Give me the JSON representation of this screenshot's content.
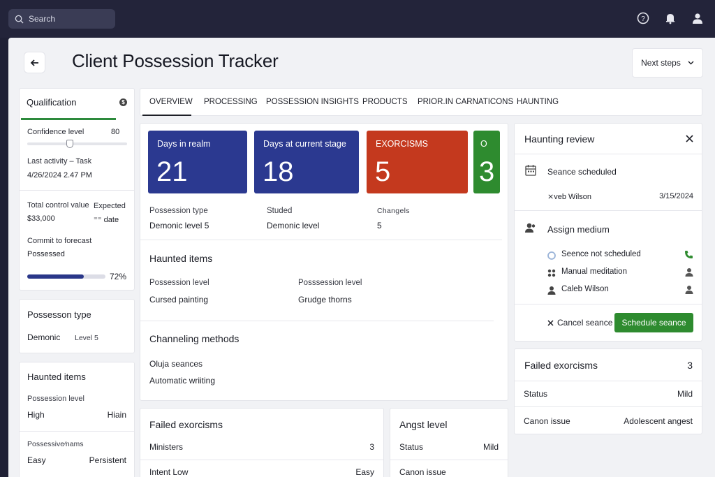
{
  "topbar": {
    "search_placeholder": "Search",
    "icons": [
      "help-icon",
      "bell-icon",
      "user-icon"
    ]
  },
  "header": {
    "title": "Client Possession Tracker",
    "next_steps_label": "Next steps"
  },
  "qualification": {
    "title": "Qualification",
    "confidence_label": "Confidence level",
    "confidence_value": "80",
    "last_activity_label": "Last activity – Task",
    "last_activity_value": "4/26/2024  2.47 PM",
    "total_control_label": "Total control value",
    "total_control_value": "$33,000",
    "expected_label": "Expected",
    "expected_value": "⁼⁼ date",
    "commit_label": "Commit to forecast",
    "commit_value": "Possessed",
    "progress_label": "72%",
    "progress": 0.72
  },
  "possession_type_card": {
    "title": "Possesson type",
    "type": "Demonic",
    "level": "Level 5"
  },
  "haunted_items_card": {
    "title": "Haunted items",
    "level_label": "Possession level",
    "level_left": "High",
    "level_right": "Hiain",
    "possessive_label": "Possessive⁄nams",
    "possessive_left": "Easy",
    "possessive_right": "Persistent"
  },
  "tabs": [
    "OVERVIEW",
    "PROCESSING",
    "POSSESSION INSIGHTS",
    "PRODUCTS",
    "PRIOR.IN CARNATICONS",
    "HAUNTING"
  ],
  "tiles": [
    {
      "label": "Days in realm",
      "value": "21",
      "color": "#2b3990"
    },
    {
      "label": "Days at current stage",
      "value": "18",
      "color": "#2b3990"
    },
    {
      "label": "EXORCISMS",
      "value": "5",
      "color": "#c4391e"
    },
    {
      "label": "O",
      "value": "3",
      "color": "#2e8b2f"
    }
  ],
  "overview": {
    "fields": [
      {
        "label": "Possession type",
        "value": "Demonic level 5"
      },
      {
        "label": "Studed",
        "value": "Demonic level"
      },
      {
        "label": "Changels",
        "value": "5"
      }
    ],
    "haunted_items_title": "Haunted items",
    "haunted_fields": [
      {
        "label": "Possession level",
        "value": "Cursed painting"
      },
      {
        "label": "Posssession level",
        "value": "Grudge thorns"
      }
    ],
    "channeling_title": "Channeling methods",
    "channeling_items": [
      "Oluja seances",
      "Automatic wriiting"
    ]
  },
  "failed_exorcisms_main": {
    "title": "Failed exorcisms",
    "rows": [
      {
        "label": "Ministers",
        "value": "3"
      },
      {
        "label": "Intent Low",
        "value": "Easy"
      }
    ]
  },
  "angst": {
    "title": "Angst level",
    "rows": [
      {
        "label": "Status",
        "value": "Mild"
      },
      {
        "label": "Canon issue",
        "value": ""
      }
    ]
  },
  "haunting_review": {
    "title": "Haunting review",
    "seance_label": "Seance scheduled",
    "seance_person": "⨯veb Wilson",
    "seance_date": "3/15/2024",
    "assign_title": "Assign medium",
    "mediums": [
      {
        "label": "Seence not scheduled",
        "icon": "phone-icon"
      },
      {
        "label": "Manual meditation",
        "icon": "person-icon"
      },
      {
        "label": "Caleb Wilson",
        "icon": "person-icon"
      }
    ],
    "cancel_label": "Cancel seance",
    "schedule_label": "Schedule seance"
  },
  "failed_exorcisms_side": {
    "title": "Failed exorcisms",
    "count": "3",
    "rows": [
      {
        "label": "Status",
        "value": "Mild"
      },
      {
        "label": "Canon issue",
        "value": "Adolescent angest"
      }
    ]
  },
  "colors": {
    "blue_tile": "#2b3990",
    "red_tile": "#c4391e",
    "green_tile": "#2e8b2f",
    "topbar": "#23243a"
  }
}
